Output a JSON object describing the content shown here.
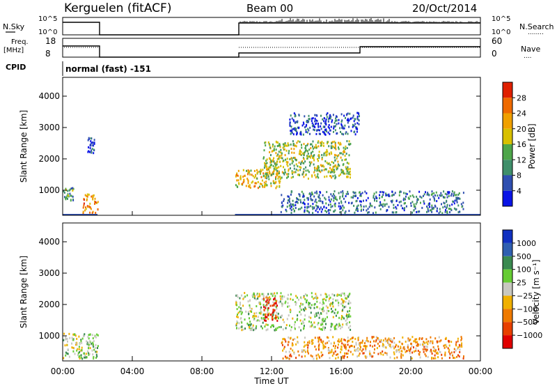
{
  "header": {
    "station": "Kerguelen (fitACF)",
    "beam": "Beam 00",
    "date": "20/Oct/2014"
  },
  "nsky_panel": {
    "left_label": "N.Sky",
    "right_label": "N.Search",
    "left_ticks": [
      "10^5",
      "10^0"
    ],
    "right_ticks": [
      "10^5",
      "10^0"
    ],
    "legend_dots": "........"
  },
  "freq_panel": {
    "left_label_line1": "Freq.",
    "left_label_line2": "[MHz]",
    "right_label": "Nave",
    "left_ticks": [
      "18",
      "8"
    ],
    "right_ticks": [
      "60",
      "0"
    ],
    "legend_dots": "....",
    "cpid_label": "CPID"
  },
  "cpid_text": "normal (fast) -151",
  "chart_data": [
    {
      "type": "heatmap",
      "title": "",
      "ylabel": "Slant Range [km]",
      "xlabel": "",
      "x_range_hours": [
        0,
        24
      ],
      "ylim": [
        200,
        4600
      ],
      "yticks": [
        "1000",
        "2000",
        "3000",
        "4000"
      ],
      "colorbar": {
        "label": "Power [dB]",
        "ticks": [
          "4",
          "8",
          "12",
          "16",
          "20",
          "24",
          "28"
        ],
        "colors": [
          "#0a14e6",
          "#2f4fb0",
          "#3f8f6a",
          "#4ea64a",
          "#d8c000",
          "#f0a000",
          "#ef6a00",
          "#e02000"
        ]
      },
      "echo_regions": [
        {
          "t0": 0.0,
          "t1": 0.6,
          "r0": 700,
          "r1": 1200,
          "level": 3
        },
        {
          "t0": 1.1,
          "t1": 2.0,
          "r0": 300,
          "r1": 900,
          "level": 6
        },
        {
          "t0": 1.4,
          "t1": 1.8,
          "r0": 2200,
          "r1": 2700,
          "level": 1
        },
        {
          "t0": 9.9,
          "t1": 12.5,
          "r0": 1100,
          "r1": 1700,
          "level": 5
        },
        {
          "t0": 11.5,
          "t1": 16.5,
          "r0": 1400,
          "r1": 2600,
          "level": 4
        },
        {
          "t0": 13.0,
          "t1": 17.0,
          "r0": 2800,
          "r1": 3500,
          "level": 1
        },
        {
          "t0": 12.5,
          "t1": 23.0,
          "r0": 300,
          "r1": 1000,
          "level": 2
        }
      ]
    },
    {
      "type": "heatmap",
      "title": "",
      "ylabel": "Slant Range [km]",
      "xlabel": "Time UT",
      "x_range_hours": [
        0,
        24
      ],
      "xticks": [
        "00:00",
        "04:00",
        "08:00",
        "12:00",
        "16:00",
        "20:00",
        "00:00"
      ],
      "ylim": [
        200,
        4600
      ],
      "yticks": [
        "1000",
        "2000",
        "3000",
        "4000"
      ],
      "colorbar": {
        "label": "Velocity [m s⁻¹]",
        "ticks": [
          "1000",
          "500",
          "100",
          "25",
          "−25",
          "−100",
          "−500",
          "−1000"
        ],
        "colors": [
          "#1030c0",
          "#2f5fb0",
          "#3a8a50",
          "#66cc33",
          "#c8c8c0",
          "#f0b000",
          "#ef7a00",
          "#e84000",
          "#e00000"
        ]
      },
      "echo_regions": [
        {
          "t0": 0.0,
          "t1": 2.0,
          "r0": 300,
          "r1": 1100,
          "level": 4
        },
        {
          "t0": 9.9,
          "t1": 16.5,
          "r0": 1200,
          "r1": 2400,
          "level": 4
        },
        {
          "t0": 11.5,
          "t1": 12.3,
          "r0": 1500,
          "r1": 2300,
          "level": 8
        },
        {
          "t0": 12.5,
          "t1": 23.0,
          "r0": 300,
          "r1": 1000,
          "level": 6
        }
      ]
    }
  ]
}
